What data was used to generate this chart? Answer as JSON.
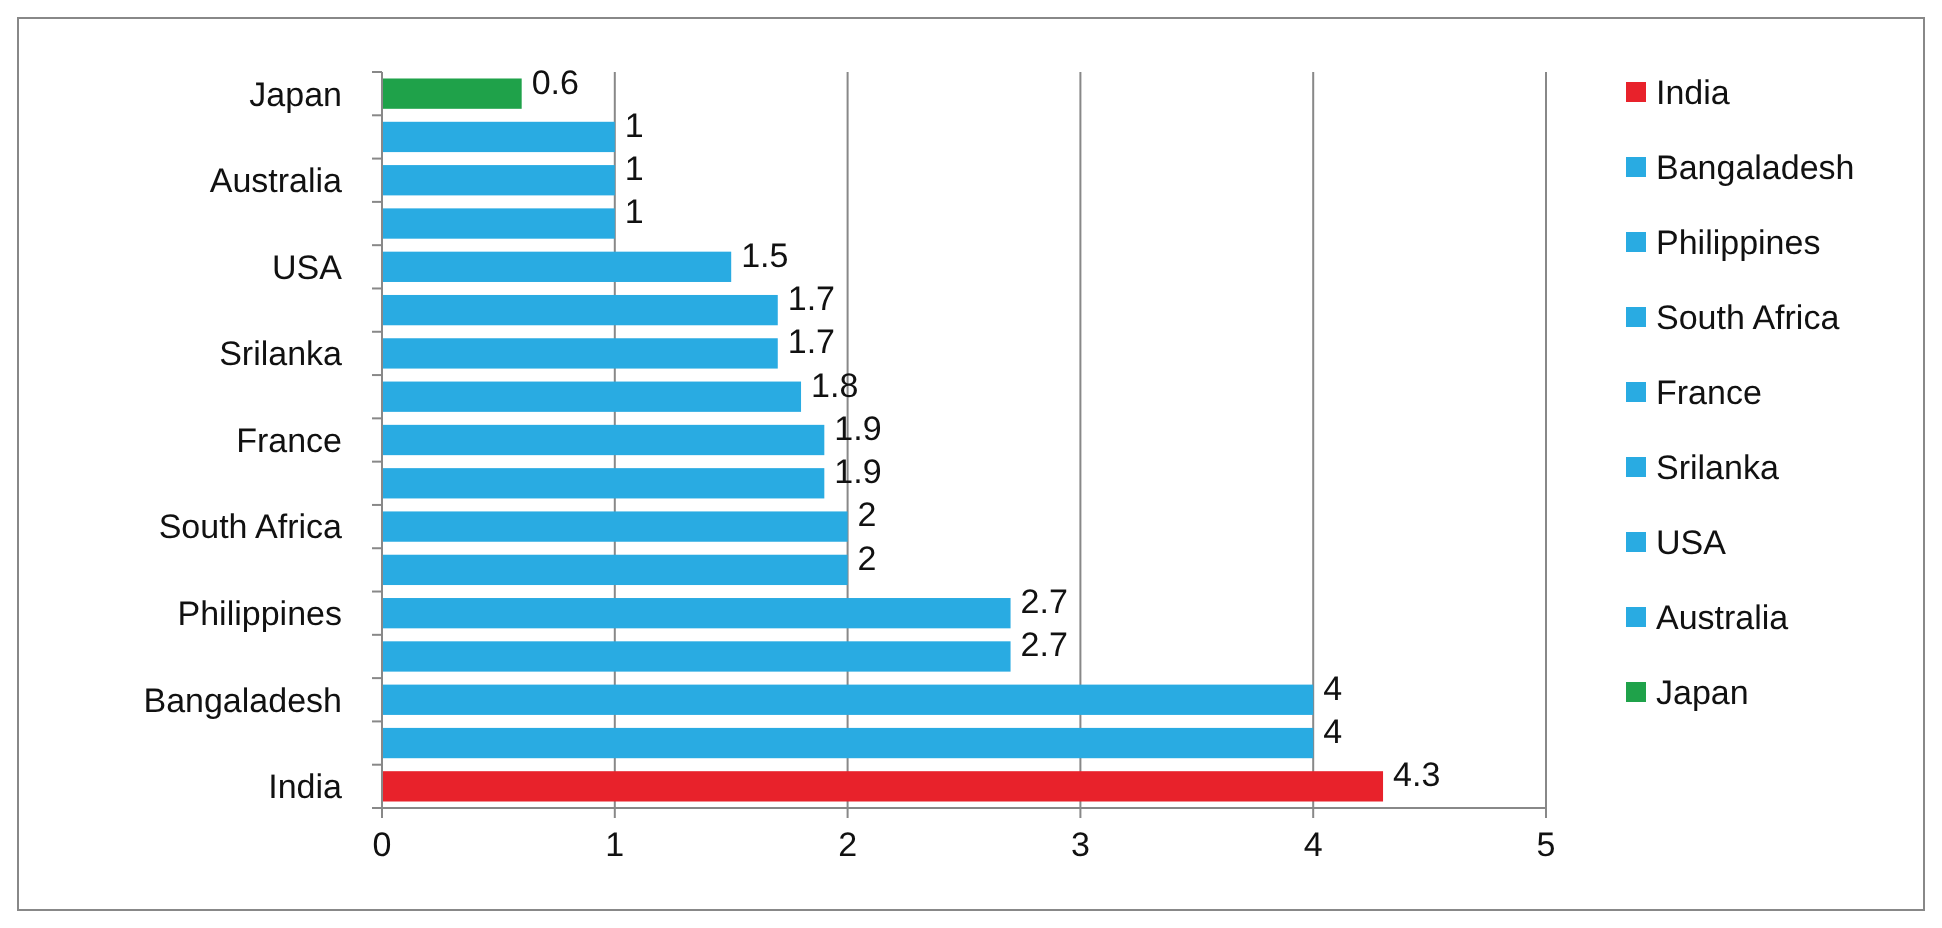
{
  "chart_data": {
    "type": "bar",
    "orientation": "horizontal",
    "categories": [
      "Japan",
      null,
      "Australia",
      null,
      "USA",
      null,
      "Srilanka",
      null,
      "France",
      null,
      "South Africa",
      null,
      "Philippines",
      null,
      "Bangaladesh",
      null,
      "India"
    ],
    "series": [
      {
        "name": "India",
        "color": "#e8222b",
        "values": [
          null,
          null,
          null,
          null,
          null,
          null,
          null,
          null,
          null,
          null,
          null,
          null,
          null,
          null,
          null,
          null,
          4.3
        ]
      },
      {
        "name": "Bangaladesh",
        "color": "#29abe2",
        "values": [
          null,
          null,
          null,
          null,
          null,
          null,
          null,
          null,
          null,
          null,
          null,
          null,
          null,
          null,
          4,
          null,
          null
        ]
      },
      {
        "name": "Philippines",
        "color": "#29abe2",
        "values": [
          null,
          null,
          null,
          null,
          null,
          null,
          null,
          null,
          null,
          null,
          null,
          null,
          2.7,
          null,
          null,
          null,
          null
        ]
      },
      {
        "name": "South Africa",
        "color": "#29abe2",
        "values": [
          null,
          null,
          null,
          null,
          null,
          null,
          null,
          null,
          null,
          null,
          2,
          null,
          null,
          null,
          null,
          null,
          null
        ]
      },
      {
        "name": "France",
        "color": "#29abe2",
        "values": [
          null,
          null,
          null,
          null,
          null,
          null,
          null,
          null,
          1.9,
          null,
          null,
          null,
          null,
          null,
          null,
          null,
          null
        ]
      },
      {
        "name": "Srilanka",
        "color": "#29abe2",
        "values": [
          null,
          null,
          null,
          null,
          null,
          null,
          1.7,
          null,
          null,
          null,
          null,
          null,
          null,
          null,
          null,
          null,
          null
        ]
      },
      {
        "name": "USA",
        "color": "#29abe2",
        "values": [
          null,
          null,
          null,
          null,
          1.5,
          null,
          null,
          null,
          null,
          null,
          null,
          null,
          null,
          null,
          null,
          null,
          null
        ]
      },
      {
        "name": "Australia",
        "color": "#29abe2",
        "values": [
          null,
          null,
          1,
          null,
          null,
          null,
          null,
          null,
          null,
          null,
          null,
          null,
          null,
          null,
          null,
          null,
          null
        ]
      },
      {
        "name": "Japan",
        "color": "#1fa24a",
        "values": [
          0.6,
          null,
          null,
          null,
          null,
          null,
          null,
          null,
          null,
          null,
          null,
          null,
          null,
          null,
          null,
          null,
          null
        ]
      },
      {
        "color": "#29abe2",
        "values": [
          null,
          1,
          null,
          1,
          null,
          1.7,
          null,
          1.8,
          null,
          1.9,
          null,
          2,
          null,
          2.7,
          null,
          4,
          null
        ]
      }
    ],
    "xlim": [
      0,
      5
    ],
    "xticks": [
      0,
      1,
      2,
      3,
      4,
      5
    ],
    "grid": "x",
    "data_labels": true,
    "legend": "right"
  }
}
